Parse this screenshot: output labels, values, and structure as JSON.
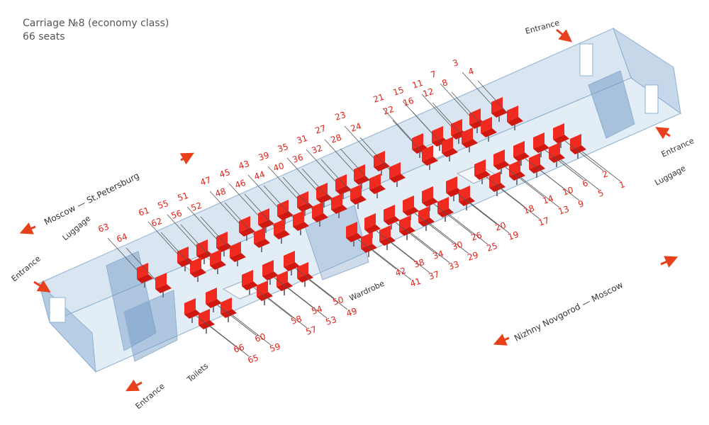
{
  "header": {
    "title": "Carriage №8 (economy class)",
    "subtitle": "66 seats"
  },
  "labels": {
    "entrance_top": "Entrance",
    "entrance_right": "Entrance",
    "entrance_left": "Entrance",
    "entrance_bottom": "Entrance",
    "luggage_left": "Luggage",
    "luggage_right": "Luggage",
    "toilets": "Toilets",
    "wardrobe": "Wardrobe"
  },
  "directions": {
    "upper": "Moscow — St.Petersburg",
    "lower": "Nizhny Novgorod — Moscow"
  },
  "seat_numbers": [
    "21",
    "15",
    "11",
    "7",
    "3",
    "22",
    "16",
    "12",
    "8",
    "4",
    "47",
    "45",
    "43",
    "39",
    "35",
    "31",
    "27",
    "23",
    "48",
    "46",
    "44",
    "40",
    "36",
    "32",
    "28",
    "24",
    "61",
    "55",
    "51",
    "62",
    "56",
    "52",
    "63",
    "64",
    "2",
    "1",
    "6",
    "5",
    "10",
    "9",
    "14",
    "13",
    "18",
    "17",
    "20",
    "19",
    "26",
    "25",
    "30",
    "29",
    "34",
    "33",
    "38",
    "37",
    "42",
    "41",
    "50",
    "49",
    "54",
    "53",
    "58",
    "57",
    "60",
    "59",
    "66",
    "65"
  ]
}
